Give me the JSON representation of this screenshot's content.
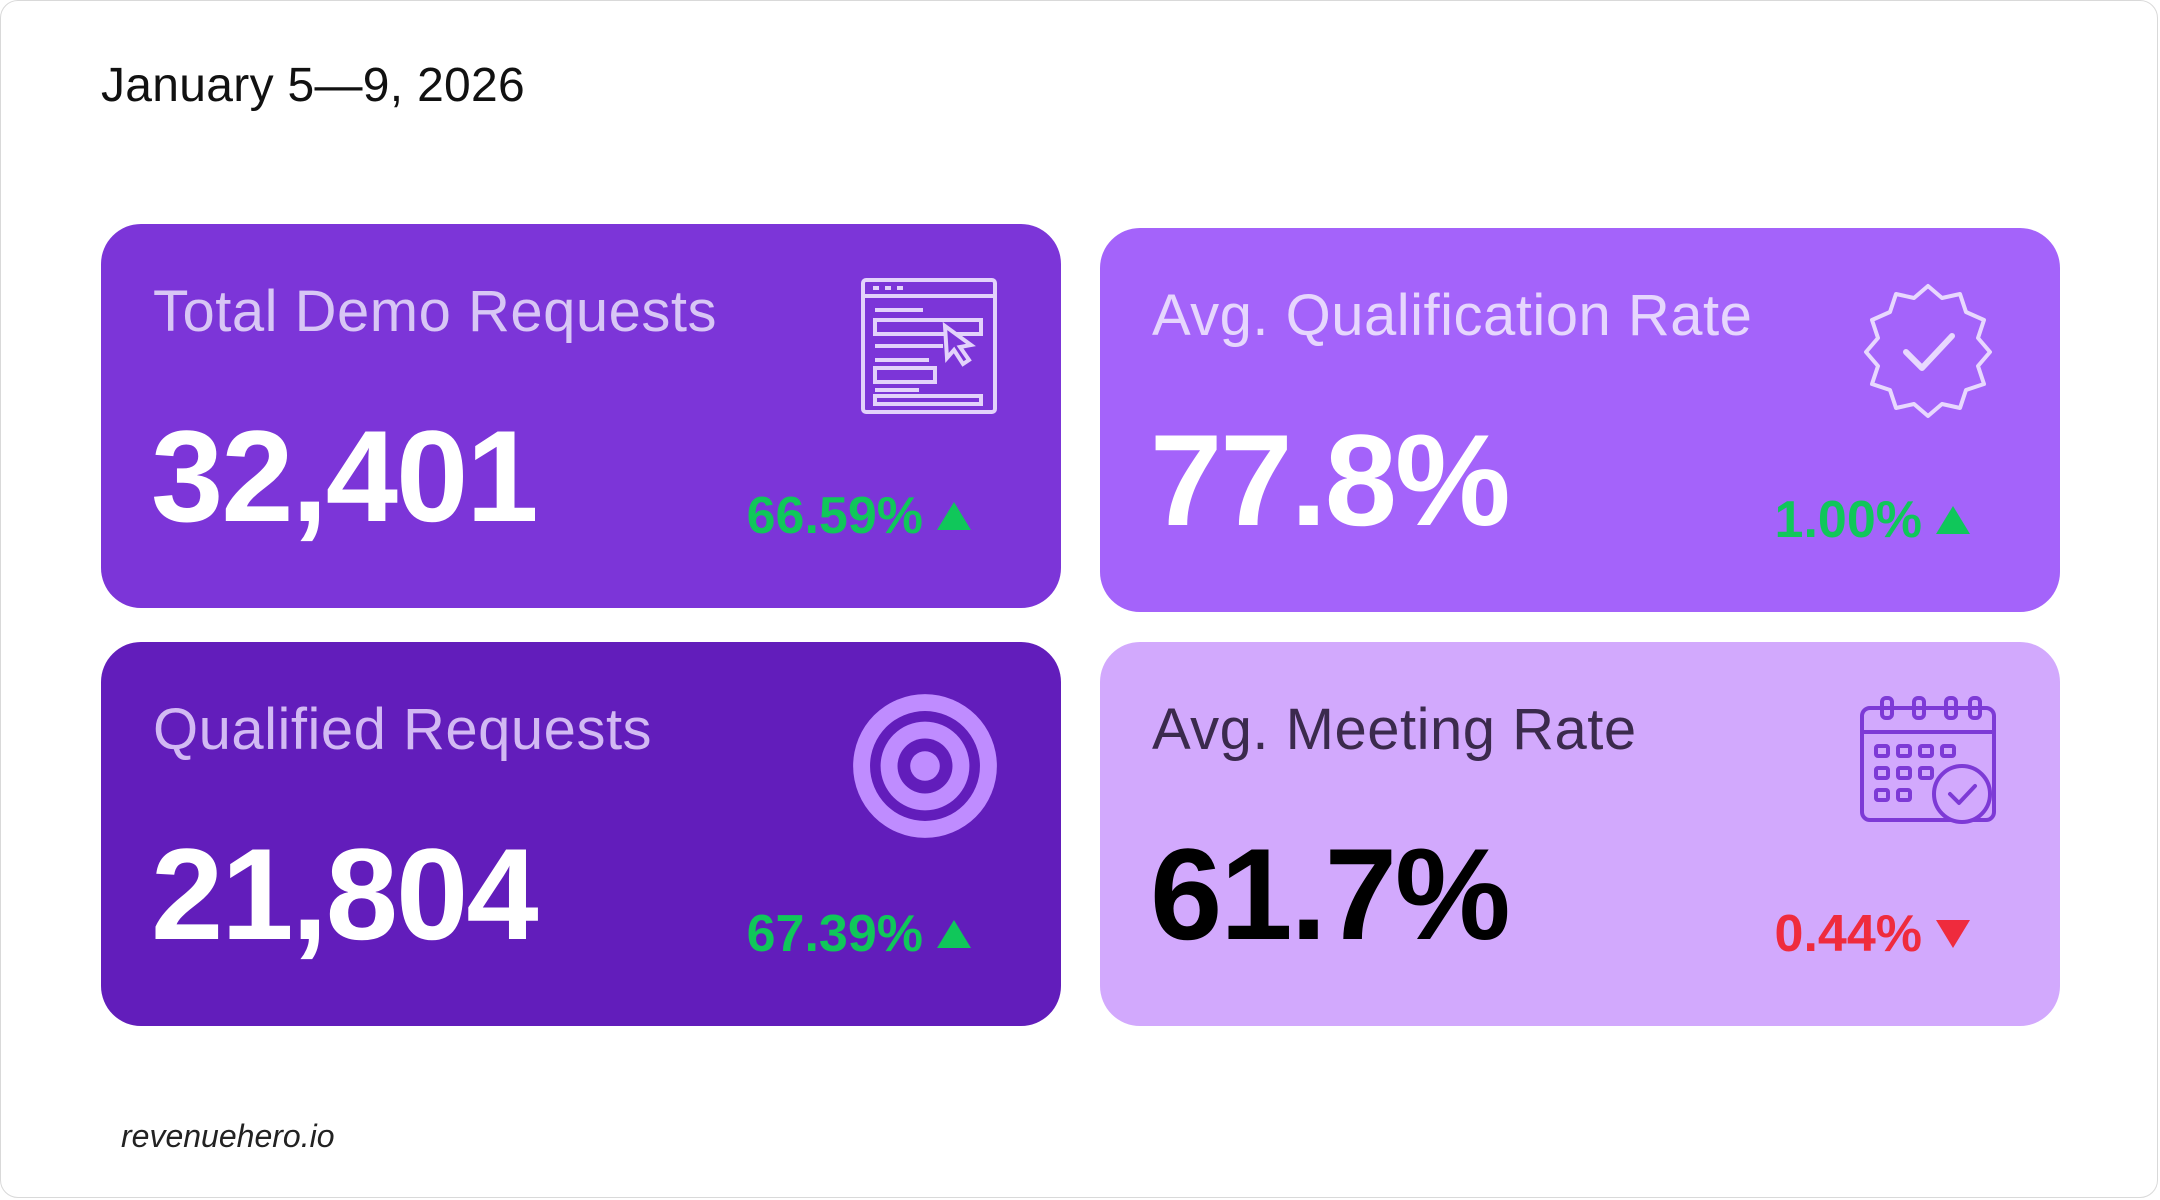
{
  "header": {
    "date_range": "January 5—9, 2026"
  },
  "cards": [
    {
      "title": "Total Demo Requests",
      "value": "32,401",
      "delta": "66.59%",
      "trend": "up",
      "icon": "form-cursor-icon",
      "bg": "#7c35d8"
    },
    {
      "title": "Avg. Qualification Rate",
      "value": "77.8%",
      "delta": "1.00%",
      "trend": "up",
      "icon": "verified-badge-icon",
      "bg": "#a463fa"
    },
    {
      "title": "Qualified Requests",
      "value": "21,804",
      "delta": "67.39%",
      "trend": "up",
      "icon": "target-icon",
      "bg": "#621dbb"
    },
    {
      "title": "Avg. Meeting Rate",
      "value": "61.7%",
      "delta": "0.44%",
      "trend": "down",
      "icon": "calendar-check-icon",
      "bg": "#d2a9fd"
    }
  ],
  "colors": {
    "positive": "#10c75a",
    "negative": "#ef2b3d"
  },
  "footer": {
    "brand": "revenuehero.io"
  }
}
